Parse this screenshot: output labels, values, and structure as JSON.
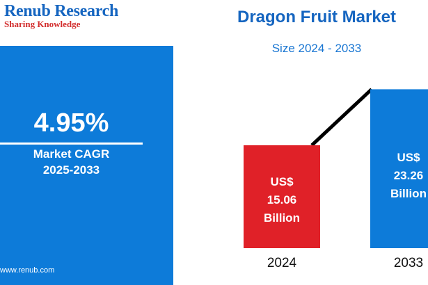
{
  "logo": {
    "title": "Renub Research",
    "tagline": "Sharing Knowledge"
  },
  "cagr": {
    "value": "4.95%",
    "label_line1": "Market CAGR",
    "label_line2": "2025-2033",
    "website": "www.renub.com"
  },
  "colors": {
    "accent_blue": "#0d7bd9",
    "bar_red": "#e02128",
    "bar_blue": "#0d7bd9"
  },
  "chart_data": {
    "type": "bar",
    "title": "Dragon Fruit Market",
    "subtitle": "Size 2024 - 2033",
    "categories": [
      "2024",
      "2033"
    ],
    "values": [
      15.06,
      23.26
    ],
    "bar_labels": [
      [
        "US$",
        "15.06",
        "Billion"
      ],
      [
        "US$",
        "23.26",
        "Billion"
      ]
    ],
    "bar_colors": [
      "#e02128",
      "#0d7bd9"
    ],
    "trend_line": true,
    "grid": false
  }
}
